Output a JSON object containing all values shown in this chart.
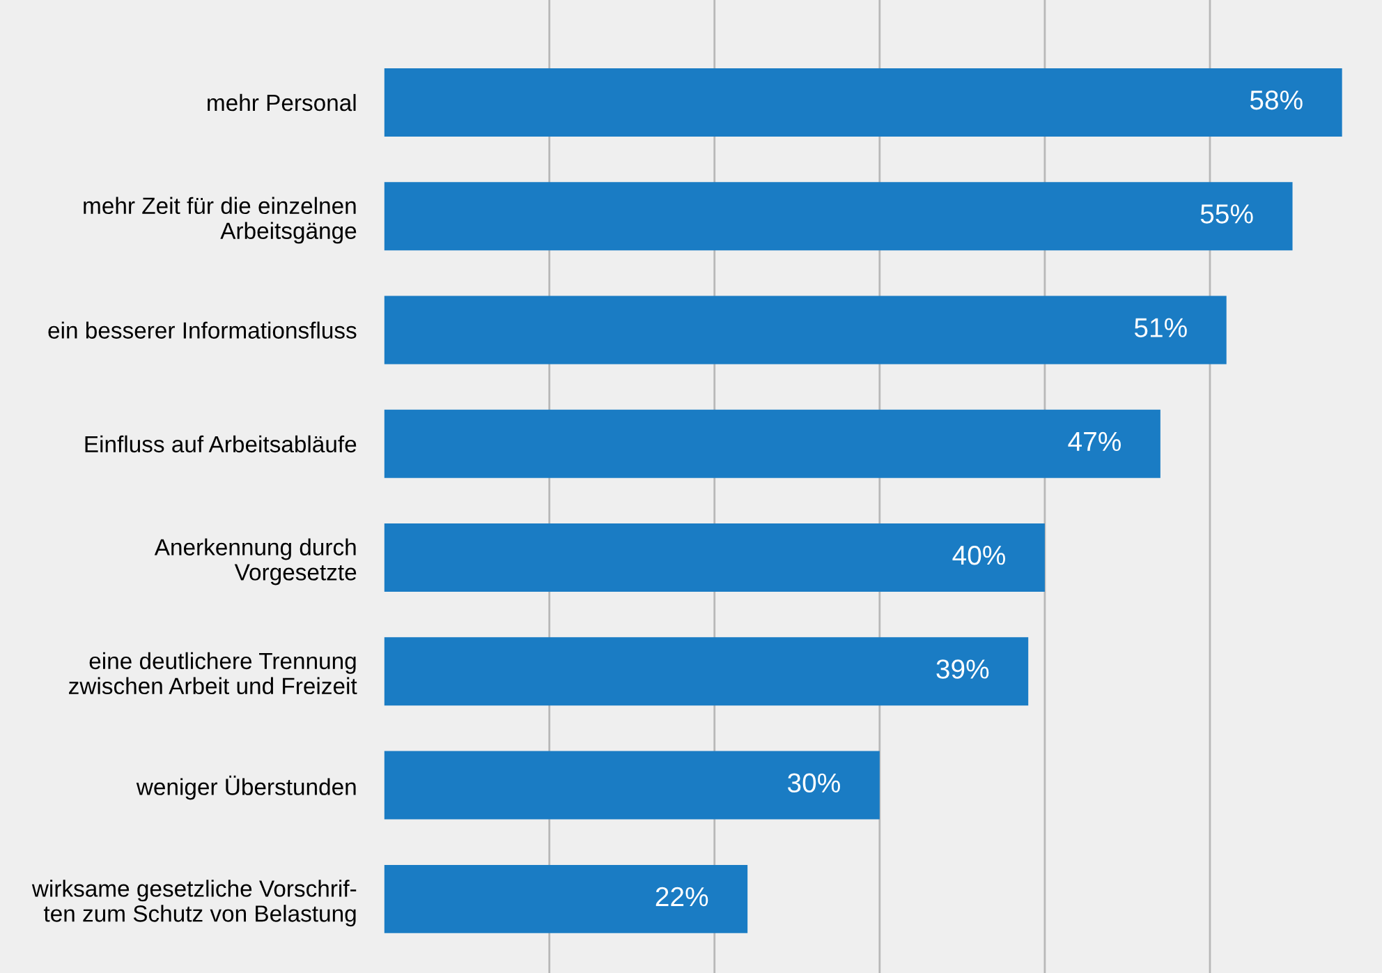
{
  "chart_data": {
    "type": "bar",
    "orientation": "horizontal",
    "relative": false,
    "categories": [
      "mehr Personal",
      "mehr Zeit für die einzelnen\nArbeitsgänge",
      "ein besserer Informationsfluss",
      "Einfluss auf Arbeitsabläufe",
      "Anerkennung durch\nVorgesetzte",
      "eine deutlichere Trennung\nzwischen Arbeit und Freizeit",
      "weniger Überstunden",
      "wirksame gesetzliche Vorschrif-\nten zum Schutz von Belastung"
    ],
    "values": [
      58,
      55,
      51,
      47,
      40,
      39,
      30,
      22
    ],
    "value_labels": [
      "58%",
      "55%",
      "51%",
      "47%",
      "40%",
      "39%",
      "30%",
      "22%"
    ],
    "color": "#1a7cc4",
    "xlim": [
      0,
      60
    ],
    "xticks": [
      {
        "value": 10,
        "label": null
      },
      {
        "value": 20,
        "label": null
      },
      {
        "value": 30,
        "label": null
      },
      {
        "value": 40,
        "label": null
      },
      {
        "value": 50,
        "label": null
      }
    ],
    "grid": "x",
    "tick_labels": "y"
  }
}
